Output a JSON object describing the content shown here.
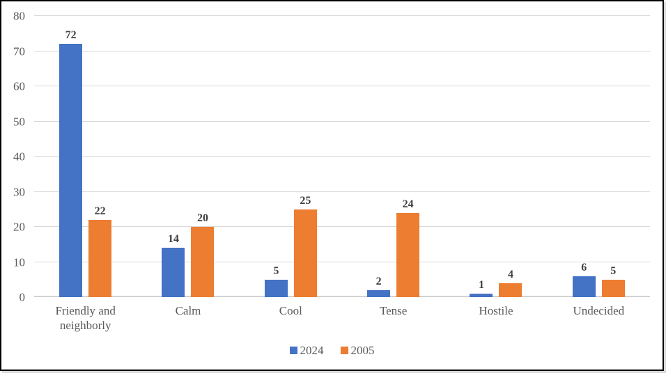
{
  "chart_data": {
    "type": "bar",
    "title": "",
    "xlabel": "",
    "ylabel": "",
    "categories": [
      "Friendly and neighborly",
      "Calm",
      "Cool",
      "Tense",
      "Hostile",
      "Undecided"
    ],
    "series": [
      {
        "name": "2024",
        "color": "#4472C4",
        "values": [
          72,
          14,
          5,
          2,
          1,
          6
        ]
      },
      {
        "name": "2005",
        "color": "#ED7D31",
        "values": [
          22,
          20,
          25,
          24,
          4,
          5
        ]
      }
    ],
    "ylim": [
      0,
      80
    ],
    "yticks": [
      0,
      10,
      20,
      30,
      40,
      50,
      60,
      70,
      80
    ],
    "grid": true,
    "gridline_color": "#D9D9D9",
    "axis_line_color": "#D2D2D2",
    "tick_label_color": "#595959",
    "data_label_color": "#404040",
    "frame_border_color": "#000000",
    "legend_position": "bottom",
    "data_labels": true
  }
}
